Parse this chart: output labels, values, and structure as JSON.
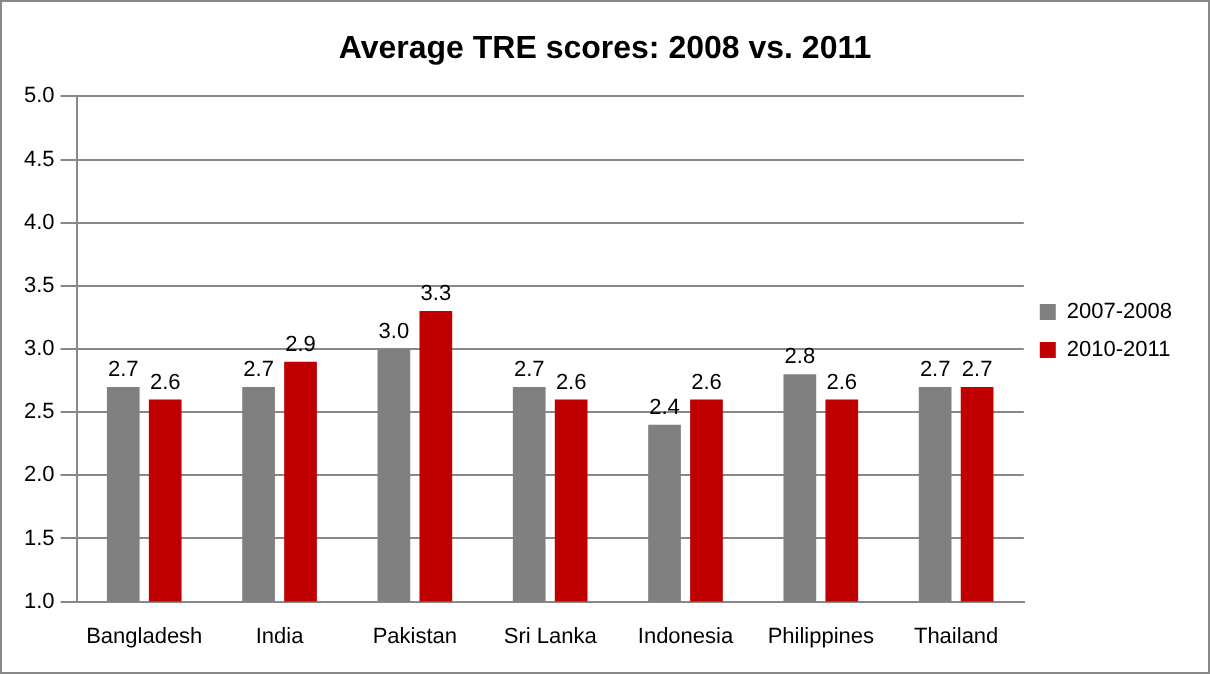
{
  "chart_data": {
    "type": "bar",
    "title": "Average TRE scores: 2008 vs. 2011",
    "categories": [
      "Bangladesh",
      "India",
      "Pakistan",
      "Sri Lanka",
      "Indonesia",
      "Philippines",
      "Thailand"
    ],
    "series": [
      {
        "name": "2007-2008",
        "color": "#808080",
        "values": [
          2.7,
          2.7,
          3.0,
          2.7,
          2.4,
          2.8,
          2.7
        ],
        "value_labels": [
          "2.7",
          "2.7",
          "3.0",
          "2.7",
          "2.4",
          "2.8",
          "2.7"
        ]
      },
      {
        "name": "2010-2011",
        "color": "#c00000",
        "values": [
          2.6,
          2.9,
          3.3,
          2.6,
          2.6,
          2.6,
          2.7
        ],
        "value_labels": [
          "2.6",
          "2.9",
          "3.3",
          "2.6",
          "2.6",
          "2.6",
          "2.7"
        ]
      }
    ],
    "ylim": [
      1.0,
      5.0
    ],
    "yticks": [
      {
        "value": 1,
        "label": "1.0"
      },
      {
        "value": 1.5,
        "label": "1.5"
      },
      {
        "value": 2,
        "label": "2.0"
      },
      {
        "value": 2.5,
        "label": "2.5"
      },
      {
        "value": 3,
        "label": "3.0"
      },
      {
        "value": 3.5,
        "label": "3.5"
      },
      {
        "value": 4,
        "label": "4.0"
      },
      {
        "value": 4.5,
        "label": "4.5"
      },
      {
        "value": 5,
        "label": "5.0"
      }
    ],
    "grid": "y",
    "legend": "right"
  }
}
